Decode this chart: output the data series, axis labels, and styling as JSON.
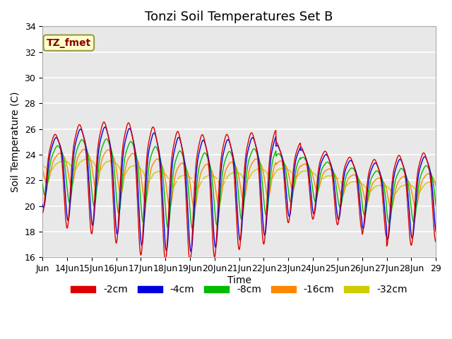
{
  "title": "Tonzi Soil Temperatures Set B",
  "xlabel": "Time",
  "ylabel": "Soil Temperature (C)",
  "ylim": [
    16,
    34
  ],
  "annotation": "TZ_fmet",
  "legend_labels": [
    "-2cm",
    "-4cm",
    "-8cm",
    "-16cm",
    "-32cm"
  ],
  "colors": [
    "#dd0000",
    "#0000dd",
    "#00bb00",
    "#ff8800",
    "#cccc00"
  ],
  "plot_bg_color": "#e8e8e8",
  "grid_color": "white",
  "title_fontsize": 13,
  "axis_label_fontsize": 10,
  "tick_fontsize": 9,
  "legend_fontsize": 10
}
